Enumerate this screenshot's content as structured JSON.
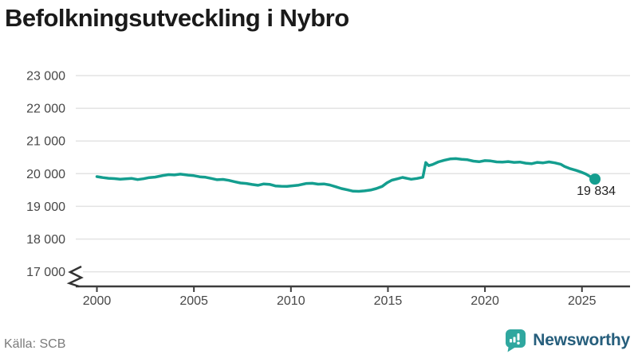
{
  "header": {
    "title": "Befolkningsutveckling i Nybro"
  },
  "footer": {
    "source": "Källa: SCB",
    "brand": {
      "name": "Newsworthy",
      "icon": "bar-chart-speech-bubble",
      "icon_color": "#2FA79F",
      "text_color": "#265E7C"
    }
  },
  "chart_data": {
    "type": "line",
    "title": "Befolkningsutveckling i Nybro",
    "xlabel": "",
    "ylabel": "",
    "grid": "horizontal",
    "legend": "none",
    "line_color": "#149E8F",
    "axis_color": "#3d3d3d",
    "grid_color": "#e3e3e3",
    "tick_label_color": "#474747",
    "xlim": [
      1998.9,
      2027.5
    ],
    "ylim": [
      17000,
      23000
    ],
    "axis_break_below": 17000,
    "x_ticks": [
      2000,
      2005,
      2010,
      2015,
      2020,
      2025
    ],
    "y_ticks": [
      {
        "value": 23000,
        "label": "23 000"
      },
      {
        "value": 22000,
        "label": "22 000"
      },
      {
        "value": 21000,
        "label": "21 000"
      },
      {
        "value": 20000,
        "label": "20 000"
      },
      {
        "value": 19000,
        "label": "19 000"
      },
      {
        "value": 18000,
        "label": "18 000"
      },
      {
        "value": 17000,
        "label": "17 000"
      }
    ],
    "end_marker": {
      "x": 2025.67,
      "value": 19834,
      "label": "19 834"
    },
    "series": [
      {
        "name": "Folkmängd i Nybro",
        "points": [
          [
            2000.0,
            19910
          ],
          [
            2000.3,
            19880
          ],
          [
            2000.6,
            19860
          ],
          [
            2000.9,
            19850
          ],
          [
            2001.2,
            19830
          ],
          [
            2001.5,
            19845
          ],
          [
            2001.8,
            19855
          ],
          [
            2002.1,
            19820
          ],
          [
            2002.4,
            19845
          ],
          [
            2002.7,
            19880
          ],
          [
            2003.0,
            19895
          ],
          [
            2003.4,
            19945
          ],
          [
            2003.7,
            19970
          ],
          [
            2004.0,
            19960
          ],
          [
            2004.3,
            19985
          ],
          [
            2004.7,
            19955
          ],
          [
            2005.0,
            19940
          ],
          [
            2005.3,
            19905
          ],
          [
            2005.6,
            19890
          ],
          [
            2005.9,
            19855
          ],
          [
            2006.2,
            19815
          ],
          [
            2006.5,
            19825
          ],
          [
            2006.8,
            19795
          ],
          [
            2007.1,
            19755
          ],
          [
            2007.4,
            19715
          ],
          [
            2007.7,
            19700
          ],
          [
            2008.0,
            19670
          ],
          [
            2008.3,
            19645
          ],
          [
            2008.6,
            19685
          ],
          [
            2008.9,
            19675
          ],
          [
            2009.2,
            19625
          ],
          [
            2009.5,
            19615
          ],
          [
            2009.8,
            19610
          ],
          [
            2010.1,
            19630
          ],
          [
            2010.4,
            19650
          ],
          [
            2010.8,
            19700
          ],
          [
            2011.1,
            19705
          ],
          [
            2011.4,
            19680
          ],
          [
            2011.7,
            19685
          ],
          [
            2012.0,
            19655
          ],
          [
            2012.3,
            19600
          ],
          [
            2012.6,
            19545
          ],
          [
            2012.9,
            19505
          ],
          [
            2013.2,
            19465
          ],
          [
            2013.5,
            19460
          ],
          [
            2013.8,
            19475
          ],
          [
            2014.1,
            19500
          ],
          [
            2014.4,
            19545
          ],
          [
            2014.7,
            19610
          ],
          [
            2014.95,
            19720
          ],
          [
            2015.2,
            19800
          ],
          [
            2015.5,
            19845
          ],
          [
            2015.75,
            19885
          ],
          [
            2016.0,
            19855
          ],
          [
            2016.2,
            19830
          ],
          [
            2016.5,
            19855
          ],
          [
            2016.8,
            19890
          ],
          [
            2016.95,
            20340
          ],
          [
            2017.1,
            20245
          ],
          [
            2017.3,
            20280
          ],
          [
            2017.6,
            20360
          ],
          [
            2017.9,
            20410
          ],
          [
            2018.2,
            20450
          ],
          [
            2018.5,
            20460
          ],
          [
            2018.8,
            20440
          ],
          [
            2019.1,
            20425
          ],
          [
            2019.4,
            20385
          ],
          [
            2019.7,
            20365
          ],
          [
            2020.0,
            20400
          ],
          [
            2020.3,
            20390
          ],
          [
            2020.6,
            20360
          ],
          [
            2020.9,
            20355
          ],
          [
            2021.2,
            20370
          ],
          [
            2021.5,
            20345
          ],
          [
            2021.8,
            20355
          ],
          [
            2022.1,
            20320
          ],
          [
            2022.4,
            20305
          ],
          [
            2022.7,
            20345
          ],
          [
            2023.0,
            20330
          ],
          [
            2023.3,
            20360
          ],
          [
            2023.6,
            20330
          ],
          [
            2023.9,
            20290
          ],
          [
            2024.1,
            20220
          ],
          [
            2024.4,
            20150
          ],
          [
            2024.7,
            20100
          ],
          [
            2025.0,
            20040
          ],
          [
            2025.2,
            19990
          ],
          [
            2025.45,
            19900
          ],
          [
            2025.67,
            19834
          ]
        ]
      }
    ]
  }
}
